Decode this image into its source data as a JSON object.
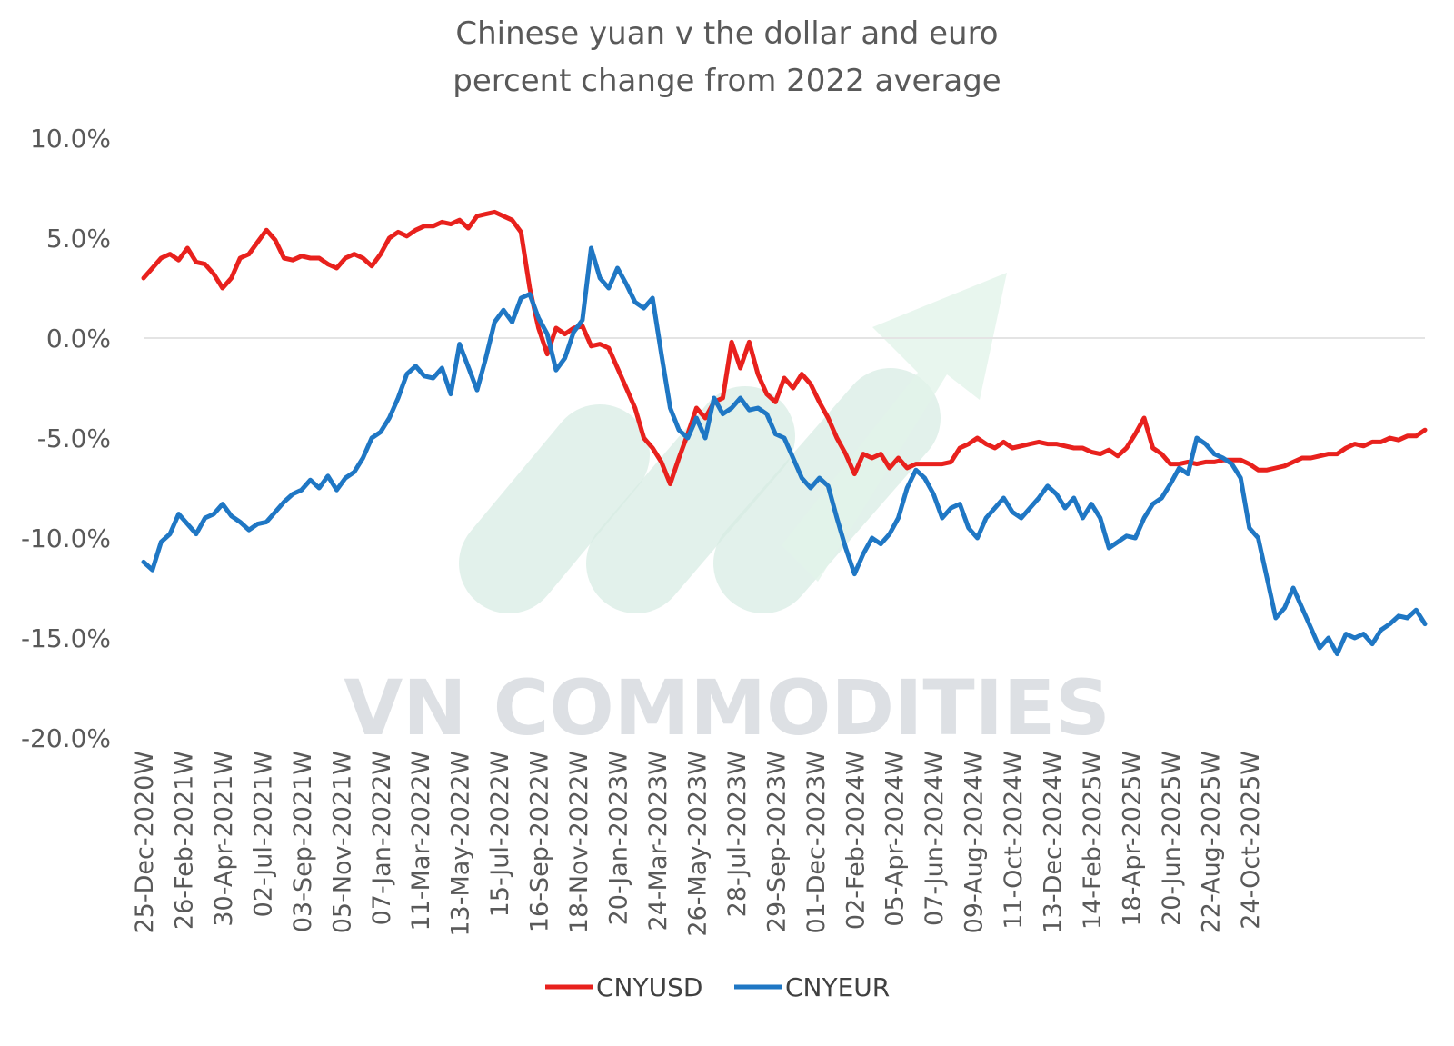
{
  "chart_data": {
    "type": "line",
    "title": [
      "Chinese yuan v the dollar and euro",
      "percent change from 2022 average"
    ],
    "ylim": [
      -20,
      10
    ],
    "yticks": [
      {
        "value": 10,
        "label": "10.0%"
      },
      {
        "value": 5,
        "label": "5.0%"
      },
      {
        "value": 0,
        "label": "0.0%"
      },
      {
        "value": -5,
        "label": "-5.0%"
      },
      {
        "value": -10,
        "label": "-10.0%"
      },
      {
        "value": -15,
        "label": "-15.0%"
      },
      {
        "value": -20,
        "label": "-20.0%"
      }
    ],
    "xticks": [
      "25-Dec-2020W",
      "26-Feb-2021W",
      "30-Apr-2021W",
      "02-Jul-2021W",
      "03-Sep-2021W",
      "05-Nov-2021W",
      "07-Jan-2022W",
      "11-Mar-2022W",
      "13-May-2022W",
      "15-Jul-2022W",
      "16-Sep-2022W",
      "18-Nov-2022W",
      "20-Jan-2023W",
      "24-Mar-2023W",
      "26-May-2023W",
      "28-Jul-2023W",
      "29-Sep-2023W",
      "01-Dec-2023W",
      "02-Feb-2024W",
      "05-Apr-2024W",
      "07-Jun-2024W",
      "09-Aug-2024W",
      "11-Oct-2024W",
      "13-Dec-2024W",
      "14-Feb-2025W",
      "18-Apr-2025W",
      "20-Jun-2025W",
      "22-Aug-2025W",
      "24-Oct-2025W"
    ],
    "x_note": "week index; one tick every 9 weeks starting 0",
    "gridlines": "zero line only",
    "legend": "bottom",
    "series": [
      {
        "name": "CNYUSD",
        "color": "#e8211d",
        "points": [
          [
            0,
            3.0
          ],
          [
            2,
            3.5
          ],
          [
            4,
            4.0
          ],
          [
            6,
            4.2
          ],
          [
            8,
            3.9
          ],
          [
            10,
            4.5
          ],
          [
            12,
            3.8
          ],
          [
            14,
            3.7
          ],
          [
            16,
            3.2
          ],
          [
            18,
            2.5
          ],
          [
            20,
            3.0
          ],
          [
            22,
            4.0
          ],
          [
            24,
            4.2
          ],
          [
            26,
            4.8
          ],
          [
            28,
            5.4
          ],
          [
            30,
            4.9
          ],
          [
            32,
            4.0
          ],
          [
            34,
            3.9
          ],
          [
            36,
            4.1
          ],
          [
            38,
            4.0
          ],
          [
            40,
            4.0
          ],
          [
            42,
            3.7
          ],
          [
            44,
            3.5
          ],
          [
            46,
            4.0
          ],
          [
            48,
            4.2
          ],
          [
            50,
            4.0
          ],
          [
            52,
            3.6
          ],
          [
            54,
            4.2
          ],
          [
            56,
            5.0
          ],
          [
            58,
            5.3
          ],
          [
            60,
            5.1
          ],
          [
            62,
            5.4
          ],
          [
            64,
            5.6
          ],
          [
            66,
            5.6
          ],
          [
            68,
            5.8
          ],
          [
            70,
            5.7
          ],
          [
            72,
            5.9
          ],
          [
            74,
            5.5
          ],
          [
            76,
            6.1
          ],
          [
            78,
            6.2
          ],
          [
            80,
            6.3
          ],
          [
            82,
            6.1
          ],
          [
            84,
            5.9
          ],
          [
            86,
            5.3
          ],
          [
            88,
            2.5
          ],
          [
            90,
            0.5
          ],
          [
            92,
            -0.8
          ],
          [
            94,
            0.5
          ],
          [
            96,
            0.2
          ],
          [
            98,
            0.5
          ],
          [
            100,
            0.6
          ],
          [
            102,
            -0.4
          ],
          [
            104,
            -0.3
          ],
          [
            106,
            -0.5
          ],
          [
            108,
            -1.5
          ],
          [
            110,
            -2.5
          ],
          [
            112,
            -3.5
          ],
          [
            114,
            -5.0
          ],
          [
            116,
            -5.5
          ],
          [
            118,
            -6.2
          ],
          [
            120,
            -7.3
          ],
          [
            122,
            -6.0
          ],
          [
            124,
            -4.8
          ],
          [
            126,
            -3.5
          ],
          [
            128,
            -4.0
          ],
          [
            130,
            -3.2
          ],
          [
            132,
            -3.0
          ],
          [
            134,
            -0.2
          ],
          [
            136,
            -1.5
          ],
          [
            138,
            -0.2
          ],
          [
            140,
            -1.8
          ],
          [
            142,
            -2.8
          ],
          [
            144,
            -3.2
          ],
          [
            146,
            -2.0
          ],
          [
            148,
            -2.5
          ],
          [
            150,
            -1.8
          ],
          [
            152,
            -2.3
          ],
          [
            154,
            -3.2
          ],
          [
            156,
            -4.0
          ],
          [
            158,
            -5.0
          ],
          [
            160,
            -5.8
          ],
          [
            162,
            -6.8
          ],
          [
            164,
            -5.8
          ],
          [
            166,
            -6.0
          ],
          [
            168,
            -5.8
          ],
          [
            170,
            -6.5
          ],
          [
            172,
            -6.0
          ],
          [
            174,
            -6.5
          ],
          [
            176,
            -6.3
          ],
          [
            178,
            -6.3
          ],
          [
            180,
            -6.3
          ],
          [
            182,
            -6.3
          ],
          [
            184,
            -6.2
          ],
          [
            186,
            -5.5
          ],
          [
            188,
            -5.3
          ],
          [
            190,
            -5.0
          ],
          [
            192,
            -5.3
          ],
          [
            194,
            -5.5
          ],
          [
            196,
            -5.2
          ],
          [
            198,
            -5.5
          ],
          [
            200,
            -5.4
          ],
          [
            202,
            -5.3
          ],
          [
            204,
            -5.2
          ],
          [
            206,
            -5.3
          ],
          [
            208,
            -5.3
          ],
          [
            210,
            -5.4
          ],
          [
            212,
            -5.5
          ],
          [
            214,
            -5.5
          ],
          [
            216,
            -5.7
          ],
          [
            218,
            -5.8
          ],
          [
            220,
            -5.6
          ],
          [
            222,
            -5.9
          ],
          [
            224,
            -5.5
          ],
          [
            226,
            -4.8
          ],
          [
            228,
            -4.0
          ],
          [
            230,
            -5.5
          ],
          [
            232,
            -5.8
          ],
          [
            234,
            -6.3
          ],
          [
            236,
            -6.3
          ],
          [
            238,
            -6.2
          ],
          [
            240,
            -6.3
          ],
          [
            242,
            -6.2
          ],
          [
            244,
            -6.2
          ],
          [
            246,
            -6.1
          ],
          [
            248,
            -6.1
          ],
          [
            250,
            -6.1
          ],
          [
            252,
            -6.3
          ],
          [
            254,
            -6.6
          ],
          [
            256,
            -6.6
          ],
          [
            258,
            -6.5
          ],
          [
            260,
            -6.4
          ],
          [
            262,
            -6.2
          ],
          [
            264,
            -6.0
          ],
          [
            266,
            -6.0
          ],
          [
            268,
            -5.9
          ],
          [
            270,
            -5.8
          ],
          [
            272,
            -5.8
          ],
          [
            274,
            -5.5
          ],
          [
            276,
            -5.3
          ],
          [
            278,
            -5.4
          ],
          [
            280,
            -5.2
          ],
          [
            282,
            -5.2
          ],
          [
            284,
            -5.0
          ],
          [
            286,
            -5.1
          ],
          [
            288,
            -4.9
          ],
          [
            290,
            -4.9
          ],
          [
            292,
            -4.6
          ]
        ]
      },
      {
        "name": "CNYEUR",
        "color": "#1f77c4",
        "points": [
          [
            0,
            -11.2
          ],
          [
            2,
            -11.6
          ],
          [
            4,
            -10.2
          ],
          [
            6,
            -9.8
          ],
          [
            8,
            -8.8
          ],
          [
            10,
            -9.3
          ],
          [
            12,
            -9.8
          ],
          [
            14,
            -9.0
          ],
          [
            16,
            -8.8
          ],
          [
            18,
            -8.3
          ],
          [
            20,
            -8.9
          ],
          [
            22,
            -9.2
          ],
          [
            24,
            -9.6
          ],
          [
            26,
            -9.3
          ],
          [
            28,
            -9.2
          ],
          [
            30,
            -8.7
          ],
          [
            32,
            -8.2
          ],
          [
            34,
            -7.8
          ],
          [
            36,
            -7.6
          ],
          [
            38,
            -7.1
          ],
          [
            40,
            -7.5
          ],
          [
            42,
            -6.9
          ],
          [
            44,
            -7.6
          ],
          [
            46,
            -7.0
          ],
          [
            48,
            -6.7
          ],
          [
            50,
            -6.0
          ],
          [
            52,
            -5.0
          ],
          [
            54,
            -4.7
          ],
          [
            56,
            -4.0
          ],
          [
            58,
            -3.0
          ],
          [
            60,
            -1.8
          ],
          [
            62,
            -1.4
          ],
          [
            64,
            -1.9
          ],
          [
            66,
            -2.0
          ],
          [
            68,
            -1.5
          ],
          [
            70,
            -2.8
          ],
          [
            72,
            -0.3
          ],
          [
            76,
            -2.6
          ],
          [
            78,
            -1.0
          ],
          [
            80,
            0.8
          ],
          [
            82,
            1.4
          ],
          [
            84,
            0.8
          ],
          [
            86,
            2.0
          ],
          [
            88,
            2.2
          ],
          [
            90,
            1.0
          ],
          [
            92,
            0.2
          ],
          [
            94,
            -1.6
          ],
          [
            96,
            -1.0
          ],
          [
            98,
            0.3
          ],
          [
            100,
            0.9
          ],
          [
            102,
            4.5
          ],
          [
            104,
            3.0
          ],
          [
            106,
            2.5
          ],
          [
            108,
            3.5
          ],
          [
            110,
            2.7
          ],
          [
            112,
            1.8
          ],
          [
            114,
            1.5
          ],
          [
            116,
            2.0
          ],
          [
            118,
            -0.8
          ],
          [
            120,
            -3.5
          ],
          [
            122,
            -4.6
          ],
          [
            124,
            -5.0
          ],
          [
            126,
            -4.0
          ],
          [
            128,
            -5.0
          ],
          [
            130,
            -3.0
          ],
          [
            132,
            -3.8
          ],
          [
            134,
            -3.5
          ],
          [
            136,
            -3.0
          ],
          [
            138,
            -3.6
          ],
          [
            140,
            -3.5
          ],
          [
            142,
            -3.8
          ],
          [
            144,
            -4.8
          ],
          [
            146,
            -5.0
          ],
          [
            148,
            -6.0
          ],
          [
            150,
            -7.0
          ],
          [
            152,
            -7.5
          ],
          [
            154,
            -7.0
          ],
          [
            156,
            -7.4
          ],
          [
            158,
            -9.0
          ],
          [
            160,
            -10.5
          ],
          [
            162,
            -11.8
          ],
          [
            164,
            -10.8
          ],
          [
            166,
            -10.0
          ],
          [
            168,
            -10.3
          ],
          [
            170,
            -9.8
          ],
          [
            172,
            -9.0
          ],
          [
            174,
            -7.5
          ],
          [
            176,
            -6.6
          ],
          [
            178,
            -7.0
          ],
          [
            180,
            -7.8
          ],
          [
            182,
            -9.0
          ],
          [
            184,
            -8.5
          ],
          [
            186,
            -8.3
          ],
          [
            188,
            -9.5
          ],
          [
            190,
            -10.0
          ],
          [
            192,
            -9.0
          ],
          [
            194,
            -8.5
          ],
          [
            196,
            -8.0
          ],
          [
            198,
            -8.7
          ],
          [
            200,
            -9.0
          ],
          [
            202,
            -8.5
          ],
          [
            204,
            -8.0
          ],
          [
            206,
            -7.4
          ],
          [
            208,
            -7.8
          ],
          [
            210,
            -8.5
          ],
          [
            212,
            -8.0
          ],
          [
            214,
            -9.0
          ],
          [
            216,
            -8.3
          ],
          [
            218,
            -9.0
          ],
          [
            220,
            -10.5
          ],
          [
            222,
            -10.2
          ],
          [
            224,
            -9.9
          ],
          [
            226,
            -10.0
          ],
          [
            228,
            -9.0
          ],
          [
            230,
            -8.3
          ],
          [
            232,
            -8.0
          ],
          [
            234,
            -7.3
          ],
          [
            236,
            -6.5
          ],
          [
            238,
            -6.8
          ],
          [
            240,
            -5.0
          ],
          [
            242,
            -5.3
          ],
          [
            244,
            -5.8
          ],
          [
            246,
            -6.0
          ],
          [
            248,
            -6.3
          ],
          [
            250,
            -7.0
          ],
          [
            252,
            -9.5
          ],
          [
            254,
            -10.0
          ],
          [
            256,
            -12.0
          ],
          [
            258,
            -14.0
          ],
          [
            260,
            -13.5
          ],
          [
            262,
            -12.5
          ],
          [
            264,
            -13.5
          ],
          [
            266,
            -14.5
          ],
          [
            268,
            -15.5
          ],
          [
            270,
            -15.0
          ],
          [
            272,
            -15.8
          ],
          [
            274,
            -14.8
          ],
          [
            276,
            -15.0
          ],
          [
            278,
            -14.8
          ],
          [
            280,
            -15.3
          ],
          [
            282,
            -14.6
          ],
          [
            284,
            -14.3
          ],
          [
            286,
            -13.9
          ],
          [
            288,
            -14.0
          ],
          [
            290,
            -13.6
          ],
          [
            292,
            -14.3
          ]
        ]
      }
    ]
  },
  "watermark": {
    "text": "VN COMMODITIES",
    "accent_color": "#d7ece3"
  }
}
